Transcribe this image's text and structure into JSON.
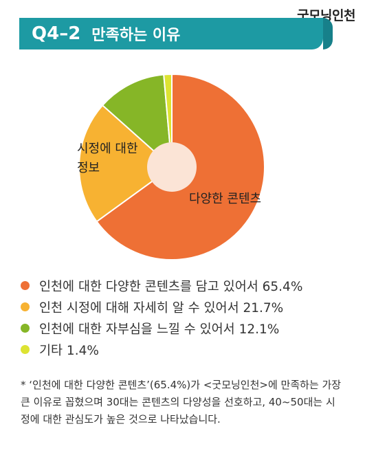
{
  "brand": "굿모닝인천",
  "title": {
    "code": "Q4–2",
    "text": "만족하는 이유"
  },
  "colors": {
    "title_bg": "#1d9aa3",
    "center_hole": "#fbe4d6"
  },
  "chart_data": {
    "type": "pie",
    "style": "donut",
    "categories": [
      "인천에 대한 다양한 콘텐츠를 담고 있어서",
      "인천 시정에 대해 자세히 알 수 있어서",
      "인천에 대한 자부심을 느낄 수 있어서",
      "기타"
    ],
    "values": [
      65.4,
      21.7,
      12.1,
      1.4
    ],
    "colors": [
      "#ee7035",
      "#f7b232",
      "#86b627",
      "#dde332"
    ],
    "slice_labels": [
      "다양한 콘텐츠",
      "시정에 대한 정보",
      "",
      ""
    ],
    "legend": [
      {
        "label": "인천에 대한 다양한 콘텐츠를 담고 있어서 65.4%",
        "color": "#ee7035"
      },
      {
        "label": "인천 시정에 대해 자세히 알 수 있어서 21.7%",
        "color": "#f7b232"
      },
      {
        "label": "인천에 대한 자부심을 느낄 수 있어서 12.1%",
        "color": "#86b627"
      },
      {
        "label": "기타 1.4%",
        "color": "#dde332"
      }
    ],
    "legend_position": "bottom"
  },
  "labels": {
    "slice1": "다양한 콘텐츠",
    "slice2_line1": "시정에 대한",
    "slice2_line2": "정보"
  },
  "note": "* ‘인천에 대한 다양한 콘텐츠’(65.4%)가 <굿모닝인천>에 만족하는 가장 큰 이유로 꼽혔으며 30대는 콘텐츠의 다양성을 선호하고, 40~50대는 시정에 대한 관심도가 높은 것으로 나타났습니다."
}
